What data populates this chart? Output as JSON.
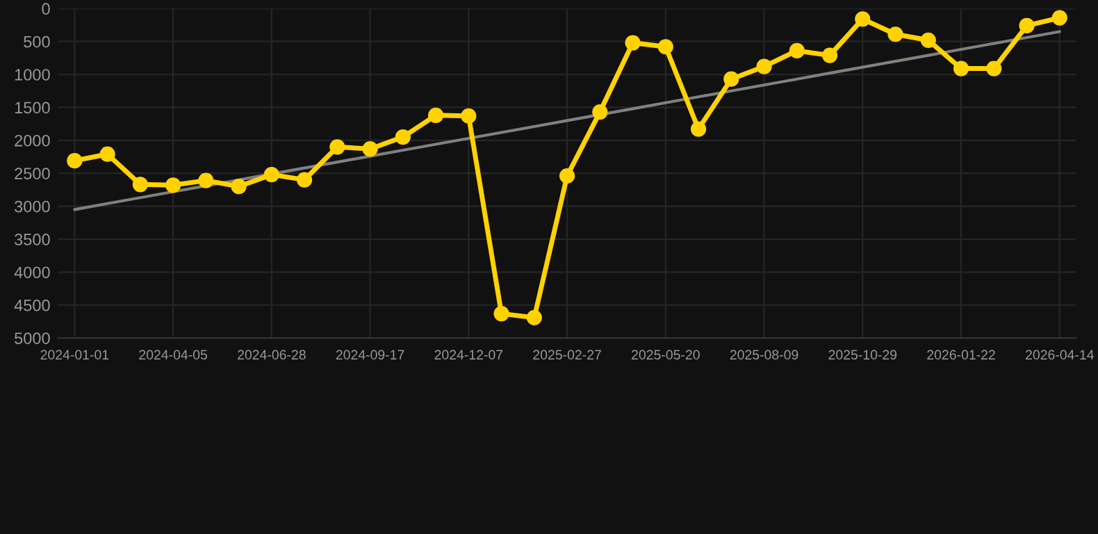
{
  "chart_data": {
    "type": "line",
    "categories": [
      "2024-01-01",
      null,
      null,
      "2024-04-05",
      null,
      null,
      "2024-06-28",
      null,
      null,
      "2024-09-17",
      null,
      null,
      "2024-12-07",
      null,
      null,
      "2025-02-27",
      null,
      null,
      "2025-05-20",
      null,
      null,
      "2025-08-09",
      null,
      null,
      "2025-10-29",
      null,
      null,
      "2026-01-22",
      null,
      null,
      "2026-04-14"
    ],
    "series": [
      {
        "color": "#ffd200",
        "marker": "circle",
        "values": [
          2310,
          2210,
          2670,
          2680,
          2610,
          2700,
          2520,
          2600,
          2100,
          2130,
          1950,
          1620,
          1630,
          4630,
          4690,
          2540,
          1570,
          520,
          580,
          1830,
          1070,
          880,
          640,
          710,
          160,
          390,
          480,
          910,
          910,
          260,
          140
        ]
      },
      {
        "type": "line",
        "color": "#808080",
        "marker": "none",
        "values": [
          3050,
          2960,
          2870,
          2780,
          2690,
          2600,
          2510,
          2420,
          2330,
          2240,
          2150,
          2060,
          1970,
          1880,
          1790,
          1700,
          1610,
          1520,
          1430,
          1340,
          1250,
          1160,
          1070,
          980,
          890,
          800,
          710,
          620,
          530,
          440,
          350
        ]
      }
    ],
    "ylim": [
      5000,
      0
    ],
    "yticks": [
      0,
      500,
      1000,
      1500,
      2000,
      2500,
      3000,
      3500,
      4000,
      4500,
      5000
    ],
    "grid": true
  }
}
